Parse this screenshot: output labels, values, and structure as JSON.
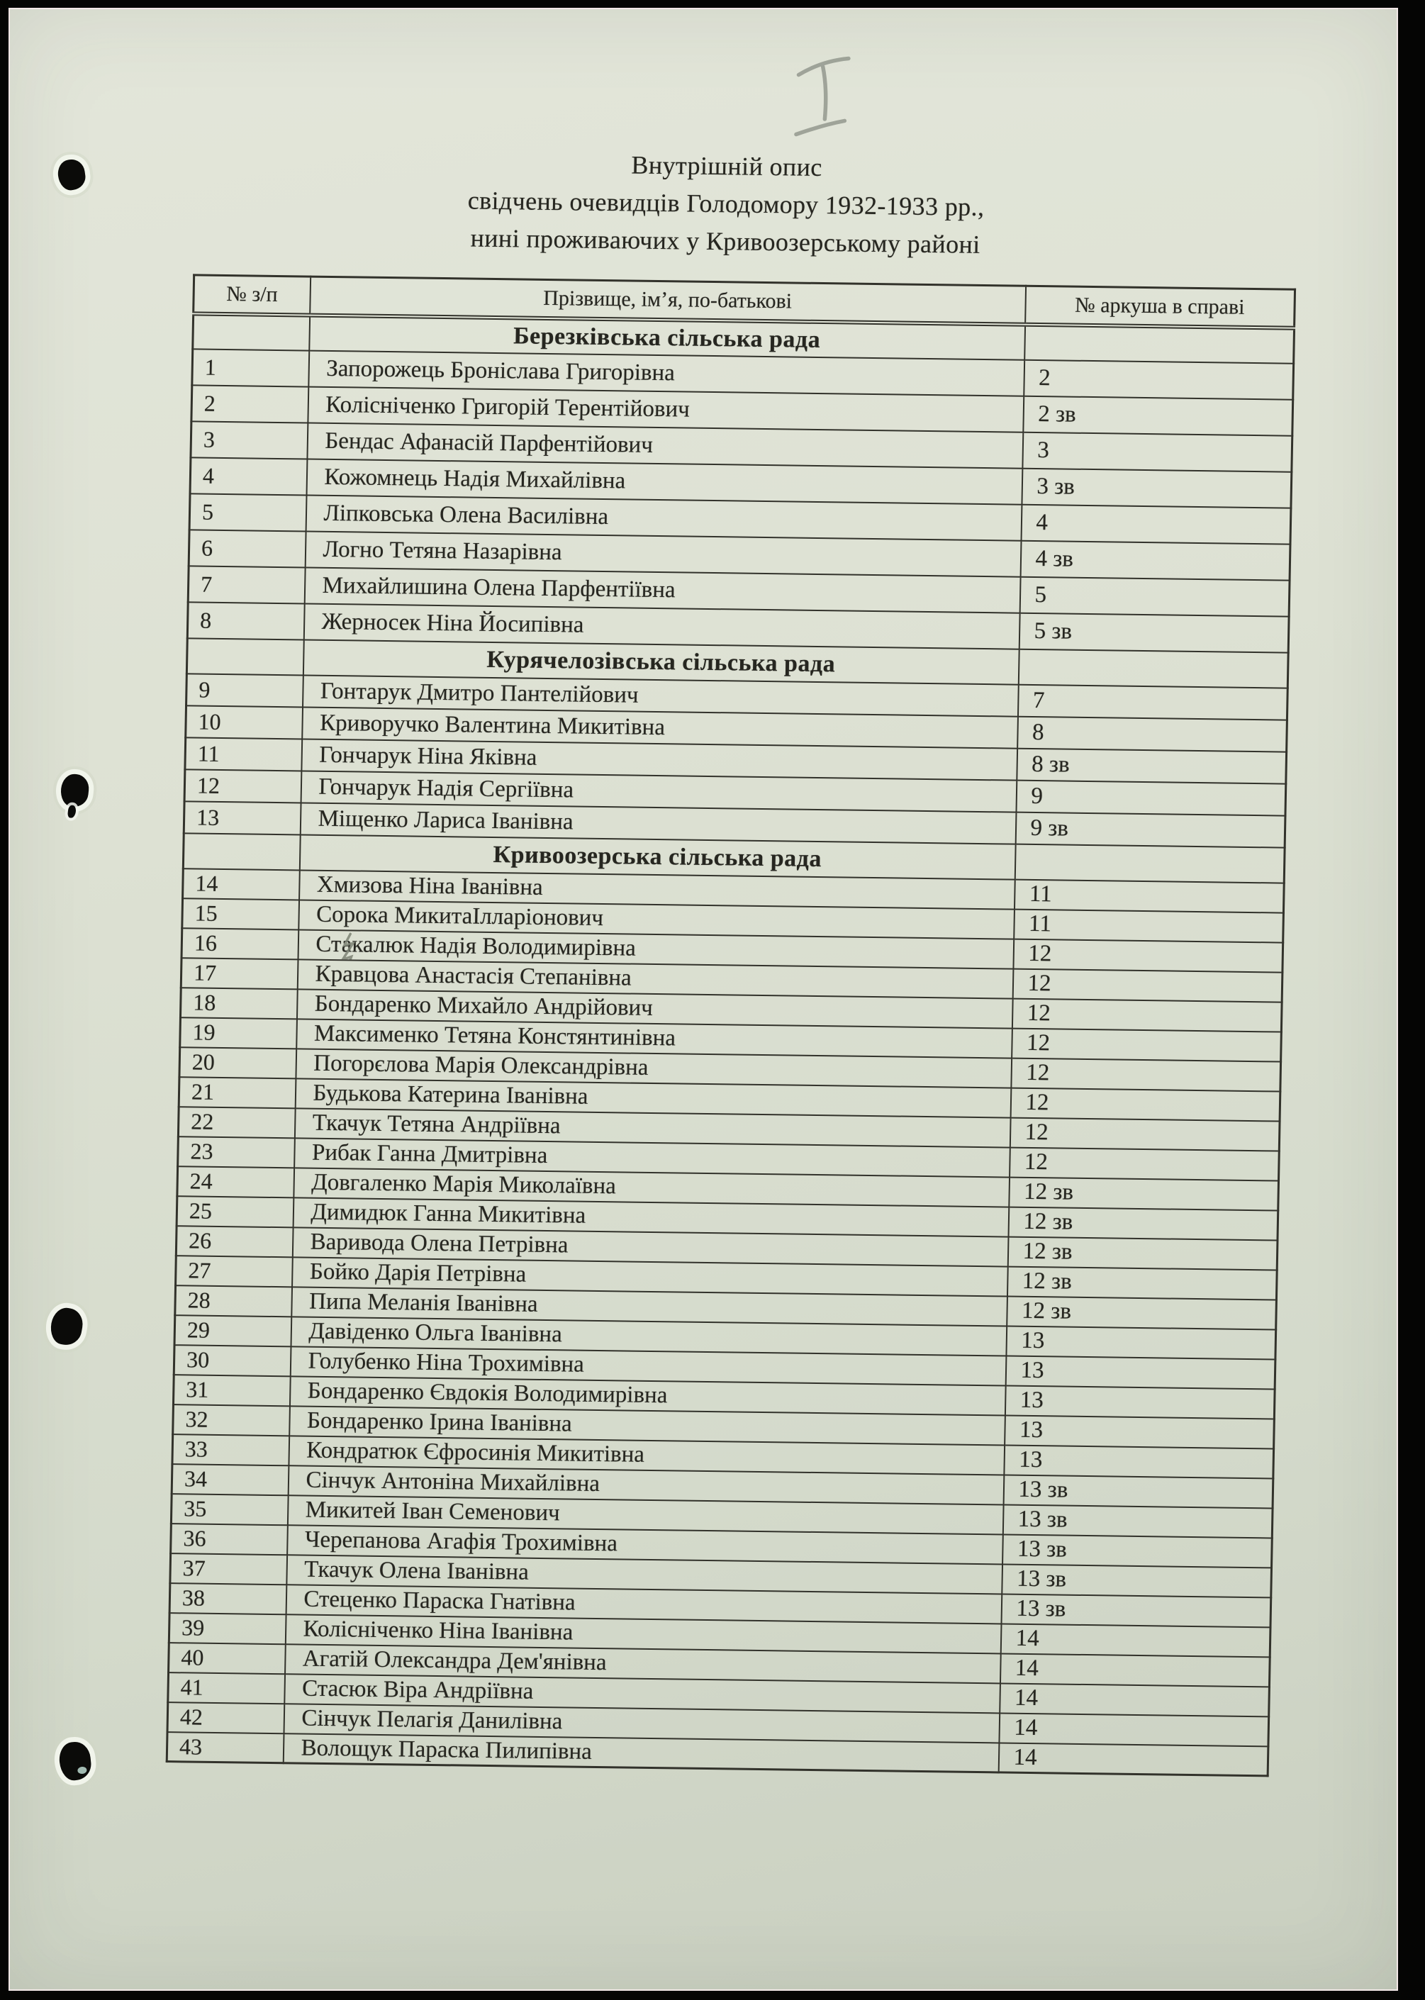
{
  "document": {
    "handwritten_mark": "I",
    "title_lines": [
      "Внутрішній опис",
      "свідчень очевидців Голодомору 1932-1933 рр.,",
      "нині проживаючих у Кривоозерському районі"
    ]
  },
  "table": {
    "columns": [
      "№ з/п",
      "Прізвище, ім’я, по-батькові",
      "№ аркуша в справі"
    ],
    "sections": [
      {
        "name": "Березківська сільська рада",
        "rows": [
          {
            "num": "1",
            "name": "Запорожець Броніслава Григорівна",
            "sheet": "2"
          },
          {
            "num": "2",
            "name": "Колісніченко Григорій Терентійович",
            "sheet": "2 зв"
          },
          {
            "num": "3",
            "name": "Бендас Афанасій Парфентійович",
            "sheet": "3"
          },
          {
            "num": "4",
            "name": "Кожомнець Надія Михайлівна",
            "sheet": "3 зв"
          },
          {
            "num": "5",
            "name": "Ліпковська Олена Василівна",
            "sheet": "4"
          },
          {
            "num": "6",
            "name": "Логно Тетяна Назарівна",
            "sheet": "4 зв"
          },
          {
            "num": "7",
            "name": "Михайлишина Олена Парфентіївна",
            "sheet": "5"
          },
          {
            "num": "8",
            "name": "Жерносек Ніна Йосипівна",
            "sheet": "5 зв"
          }
        ]
      },
      {
        "name": "Курячелозівська сільська рада",
        "rows": [
          {
            "num": "9",
            "name": "Гонтарук Дмитро Пантелійович",
            "sheet": "7"
          },
          {
            "num": "10",
            "name": "Криворучко Валентина Микитівна",
            "sheet": "8"
          },
          {
            "num": "11",
            "name": "Гончарук Ніна Яківна",
            "sheet": "8 зв"
          },
          {
            "num": "12",
            "name": "Гончарук Надія Сергіївна",
            "sheet": "9"
          },
          {
            "num": "13",
            "name": "Міщенко Лариса Іванівна",
            "sheet": "9 зв"
          }
        ]
      },
      {
        "name": "Кривоозерська сільська рада",
        "rows": [
          {
            "num": "14",
            "name": "Хмизова Ніна Іванівна",
            "sheet": "11"
          },
          {
            "num": "15",
            "name": "Сорока МикитаІлларіонович",
            "sheet": "11"
          },
          {
            "num": "16",
            "name": "Стакалюк Надія Володимирівна",
            "sheet": "12",
            "correction": true
          },
          {
            "num": "17",
            "name": "Кравцова Анастасія Степанівна",
            "sheet": "12"
          },
          {
            "num": "18",
            "name": "Бондаренко Михайло Андрійович",
            "sheet": "12"
          },
          {
            "num": "19",
            "name": "Максименко Тетяна Констянтинівна",
            "sheet": "12"
          },
          {
            "num": "20",
            "name": "Погорєлова Марія Олександрівна",
            "sheet": "12"
          },
          {
            "num": "21",
            "name": "Будькова Катерина Іванівна",
            "sheet": "12"
          },
          {
            "num": "22",
            "name": "Ткачук Тетяна Андріївна",
            "sheet": "12"
          },
          {
            "num": "23",
            "name": "Рибак Ганна Дмитрівна",
            "sheet": "12"
          },
          {
            "num": "24",
            "name": "Довгаленко Марія Миколаївна",
            "sheet": "12 зв"
          },
          {
            "num": "25",
            "name": "Димидюк Ганна Микитівна",
            "sheet": "12 зв"
          },
          {
            "num": "26",
            "name": "Варивода Олена Петрівна",
            "sheet": "12 зв"
          },
          {
            "num": "27",
            "name": "Бойко Дарія Петрівна",
            "sheet": "12 зв"
          },
          {
            "num": "28",
            "name": "Пипа Меланія Іванівна",
            "sheet": "12 зв"
          },
          {
            "num": "29",
            "name": "Давіденко Ольга Іванівна",
            "sheet": "13"
          },
          {
            "num": "30",
            "name": "Голубенко Ніна Трохимівна",
            "sheet": "13"
          },
          {
            "num": "31",
            "name": "Бондаренко Євдокія Володимирівна",
            "sheet": "13"
          },
          {
            "num": "32",
            "name": "Бондаренко Ірина Іванівна",
            "sheet": "13"
          },
          {
            "num": "33",
            "name": "Кондратюк Єфросинія Микитівна",
            "sheet": "13"
          },
          {
            "num": "34",
            "name": "Сінчук Антоніна Михайлівна",
            "sheet": "13 зв"
          },
          {
            "num": "35",
            "name": "Микитей Іван Семенович",
            "sheet": "13 зв"
          },
          {
            "num": "36",
            "name": "Черепанова Агафія Трохимівна",
            "sheet": "13 зв"
          },
          {
            "num": "37",
            "name": "Ткачук Олена Іванівна",
            "sheet": "13 зв"
          },
          {
            "num": "38",
            "name": "Стеценко Параска Гнатівна",
            "sheet": "13 зв"
          },
          {
            "num": "39",
            "name": "Колісніченко Ніна Іванівна",
            "sheet": "14"
          },
          {
            "num": "40",
            "name": "Агатій Олександра Дем'янівна",
            "sheet": "14"
          },
          {
            "num": "41",
            "name": "Стасюк Віра Андріївна",
            "sheet": "14"
          },
          {
            "num": "42",
            "name": "Сінчук Пелагія Данилівна",
            "sheet": "14"
          },
          {
            "num": "43",
            "name": "Волощук Параска Пилипівна",
            "sheet": "14"
          }
        ]
      }
    ]
  },
  "colors": {
    "bg": "#050504",
    "paper": "#dce0d2",
    "ink": "#262620",
    "rule": "#32322b",
    "pencil": "#8f948a",
    "edge": "#f2e7e7"
  }
}
